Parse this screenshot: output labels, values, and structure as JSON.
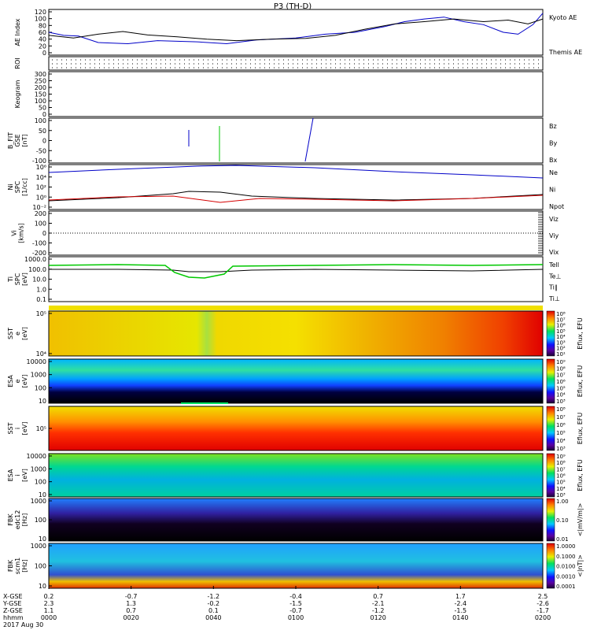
{
  "title": "P3 (TH-D)",
  "colors": {
    "red": "#d40000",
    "green": "#00c800",
    "blue": "#0000c8",
    "black": "#000000"
  },
  "chart_data": {
    "type": "line",
    "panels": [
      {
        "id": "ae",
        "ylabel": [
          "AE Index"
        ],
        "ylim": [
          0,
          120
        ],
        "ticks": [
          "120",
          "100",
          "80",
          "60",
          "40",
          "20",
          "0"
        ],
        "legend": [
          {
            "label": "Kyoto AE",
            "color": "blue"
          },
          {
            "label": "Themis AE",
            "color": "black"
          }
        ],
        "series": [
          {
            "name": "Kyoto AE",
            "color": "blue",
            "x": [
              0,
              0.03,
              0.06,
              0.1,
              0.16,
              0.22,
              0.3,
              0.36,
              0.42,
              0.5,
              0.56,
              0.62,
              0.68,
              0.72,
              0.76,
              0.8,
              0.84,
              0.88,
              0.92,
              0.95,
              0.98,
              1
            ],
            "y": [
              60,
              52,
              50,
              33,
              30,
              38,
              35,
              30,
              40,
              45,
              55,
              60,
              75,
              88,
              95,
              100,
              88,
              80,
              60,
              55,
              80,
              110
            ]
          },
          {
            "name": "Themis AE",
            "color": "black",
            "x": [
              0,
              0.05,
              0.1,
              0.15,
              0.2,
              0.26,
              0.32,
              0.38,
              0.45,
              0.52,
              0.58,
              0.64,
              0.7,
              0.76,
              0.82,
              0.88,
              0.93,
              0.97,
              1
            ],
            "y": [
              52,
              45,
              55,
              62,
              53,
              48,
              42,
              38,
              42,
              44,
              52,
              68,
              82,
              88,
              95,
              88,
              92,
              82,
              95
            ]
          }
        ]
      },
      {
        "id": "roi",
        "ylabel": [
          "ROI"
        ],
        "ticks": []
      },
      {
        "id": "keogram",
        "ylabel": [
          "Keogram"
        ],
        "ylim": [
          0,
          300
        ],
        "ticks": [
          "300",
          "250",
          "200",
          "150",
          "100",
          "50",
          "0"
        ]
      },
      {
        "id": "bfit",
        "ylabel": [
          "B_FIT",
          "GSE",
          "[nT]"
        ],
        "ylim": [
          -100,
          100
        ],
        "ticks": [
          "100",
          "50",
          "0",
          "-50",
          "-100"
        ],
        "legend": [
          {
            "label": "Bz",
            "color": "red"
          },
          {
            "label": "By",
            "color": "green"
          },
          {
            "label": "Bx",
            "color": "blue"
          }
        ]
      },
      {
        "id": "ni",
        "ylabel": [
          "Ni",
          "SPC",
          "[1/cc]"
        ],
        "ticks": [
          "10⁶",
          "10⁴",
          "10²",
          "10⁰",
          "10⁻²"
        ],
        "legend": [
          {
            "label": "Ne",
            "color": "red"
          },
          {
            "label": "Ni",
            "color": "black"
          },
          {
            "label": "Npot",
            "color": "blue"
          }
        ]
      },
      {
        "id": "vi",
        "ylabel": [
          "Vi",
          "[km/s]"
        ],
        "ylim": [
          -250,
          250
        ],
        "ticks": [
          "200",
          "100",
          "0",
          "-100",
          "-200"
        ],
        "legend": [
          {
            "label": "Viz",
            "color": "red"
          },
          {
            "label": "Viy",
            "color": "green"
          },
          {
            "label": "Vix",
            "color": "blue"
          }
        ]
      },
      {
        "id": "ti",
        "ylabel": [
          "Ti",
          "SPC",
          "[eV]"
        ],
        "ticks": [
          "1000.0",
          "100.0",
          "10.0",
          "1.0",
          "0.1"
        ],
        "legend": [
          {
            "label": "Tell",
            "color": "black"
          },
          {
            "label": "Te⊥",
            "color": "red"
          },
          {
            "label": "Ti∥",
            "color": "green"
          },
          {
            "label": "Ti⊥",
            "color": "blue"
          }
        ]
      },
      {
        "id": "sst_e",
        "ylabel": [
          "SST",
          "e",
          "[eV]"
        ],
        "ticks": [
          "10⁵",
          "10⁴"
        ],
        "colorbar": {
          "label": "Eflux, EFU",
          "ticks": [
            "10⁸",
            "10⁷",
            "10⁶",
            "10⁵",
            "10⁴",
            "10³",
            "10²",
            "10¹"
          ]
        }
      },
      {
        "id": "esa_e",
        "ylabel": [
          "ESA",
          "e",
          "[eV]"
        ],
        "ticks": [
          "10000",
          "1000",
          "100",
          "10"
        ],
        "colorbar": {
          "label": "Eflux, EFU",
          "ticks": [
            "10⁹",
            "10⁸",
            "10⁷",
            "10⁶",
            "10⁵",
            "10⁴",
            "10³"
          ]
        }
      },
      {
        "id": "sst_i",
        "ylabel": [
          "SST",
          "i",
          "[eV]"
        ],
        "ticks": [
          "10⁵"
        ],
        "colorbar": {
          "label": "Eflux, EFU",
          "ticks": [
            "10⁸",
            "10⁷",
            "10⁶",
            "10⁵",
            "10⁴",
            "10³"
          ]
        }
      },
      {
        "id": "esa_i",
        "ylabel": [
          "ESA",
          "i",
          "[eV]"
        ],
        "ticks": [
          "10000",
          "1000",
          "100",
          "10"
        ],
        "colorbar": {
          "label": "Eflux, EFU",
          "ticks": [
            "10⁹",
            "10⁸",
            "10⁷",
            "10⁶",
            "10⁵",
            "10⁴",
            "10³"
          ]
        }
      },
      {
        "id": "fbk_e",
        "ylabel": [
          "FBK",
          "edc12",
          "[Hz]"
        ],
        "ticks": [
          "1000",
          "100",
          "10"
        ],
        "colorbar": {
          "label": "<|mV/m|>",
          "ticks": [
            "1.00",
            "0.10",
            "0.01"
          ]
        }
      },
      {
        "id": "fbk_b",
        "ylabel": [
          "FBK",
          "scm1",
          "[Hz]"
        ],
        "ticks": [
          "1000",
          "100",
          "10"
        ],
        "colorbar": {
          "label": "<|nT|>",
          "ticks": [
            "1.0000",
            "0.1000",
            "0.0100",
            "0.0010",
            "0.0001"
          ]
        }
      }
    ],
    "x_axis": {
      "labels": [
        "X-GSE",
        "Y-GSE",
        "Z-GSE",
        "hhmm",
        "2017 Aug 30"
      ],
      "columns": [
        [
          "0.2",
          "2.3",
          "1.1",
          "0000"
        ],
        [
          "-0.7",
          "1.3",
          "0.7",
          "0020"
        ],
        [
          "-1.2",
          "-0.2",
          "0.1",
          "0040"
        ],
        [
          "-0.4",
          "-1.5",
          "-0.7",
          "0100"
        ],
        [
          "0.7",
          "-2.1",
          "-1.2",
          "0120"
        ],
        [
          "1.7",
          "-2.4",
          "-1.5",
          "0140"
        ],
        [
          "2.5",
          "-2.6",
          "-1.7",
          "0200"
        ]
      ]
    }
  }
}
